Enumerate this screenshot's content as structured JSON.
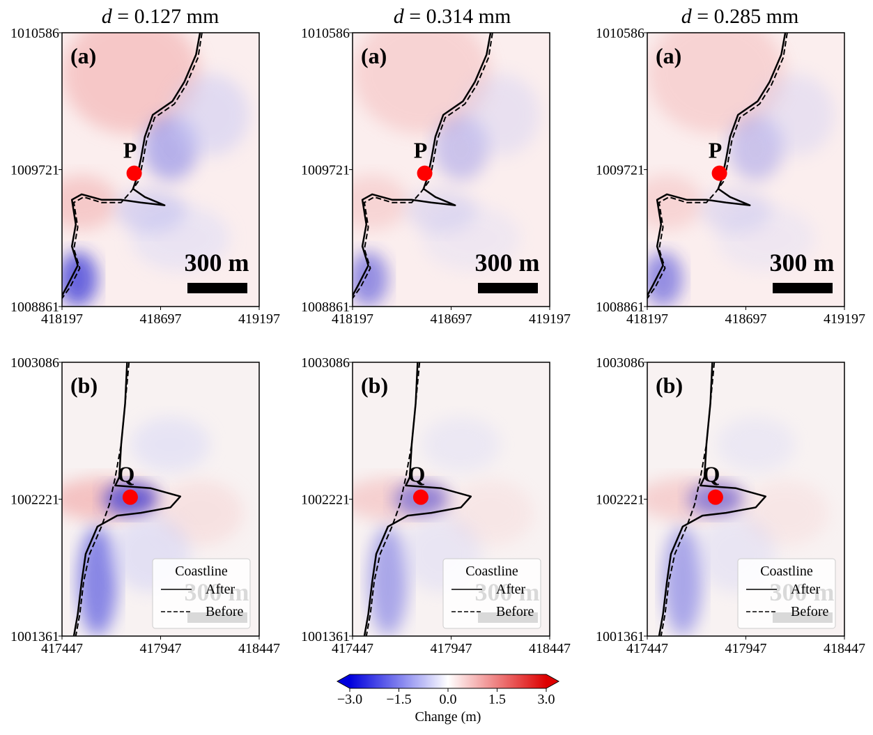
{
  "colorbar_colors": {
    "min": "#0000dd",
    "mid": "#ffffff",
    "max": "#dd0000",
    "marker": "#ff0000"
  },
  "chart_data": {
    "type": "heatmap",
    "description_columns": [
      "d = 0.127 mm",
      "d = 0.314 mm",
      "d = 0.285 mm"
    ],
    "columns": [
      {
        "italic": "d",
        "rest": " = 0.127 mm"
      },
      {
        "italic": "d",
        "rest": " = 0.314 mm"
      },
      {
        "italic": "d",
        "rest": " = 0.285 mm"
      }
    ],
    "rows": [
      {
        "panel": "(a)",
        "point": "P",
        "xlim": [
          418197,
          419197
        ],
        "ylim": [
          1008861,
          1010586
        ],
        "xticks": [
          "418197",
          "418697",
          "419197"
        ],
        "yticks": [
          "1010586",
          "1009721",
          "1008861"
        ],
        "point_xy": [
          418563,
          1009701
        ],
        "show_legend": false
      },
      {
        "panel": "(b)",
        "point": "Q",
        "xlim": [
          417447,
          418447
        ],
        "ylim": [
          1001361,
          1003086
        ],
        "xticks": [
          "417447",
          "417947",
          "418447"
        ],
        "yticks": [
          "1003086",
          "1002221",
          "1001361"
        ],
        "point_xy": [
          417793,
          1002236
        ],
        "show_legend": true
      }
    ],
    "scale_bar": "300 m",
    "legend": {
      "title": "Coastline",
      "entries": [
        {
          "label": "After",
          "style": "solid"
        },
        {
          "label": "Before",
          "style": "dashed"
        }
      ]
    },
    "colorbar": {
      "label": "Change (m)",
      "min": -3.0,
      "max": 3.0,
      "ticks": [
        "−3.0",
        "−1.5",
        "0.0",
        "1.5",
        "3.0"
      ],
      "tick_values": [
        -3.0,
        -1.5,
        0.0,
        1.5,
        3.0
      ],
      "colormap": "bwr",
      "extend": "both"
    }
  }
}
